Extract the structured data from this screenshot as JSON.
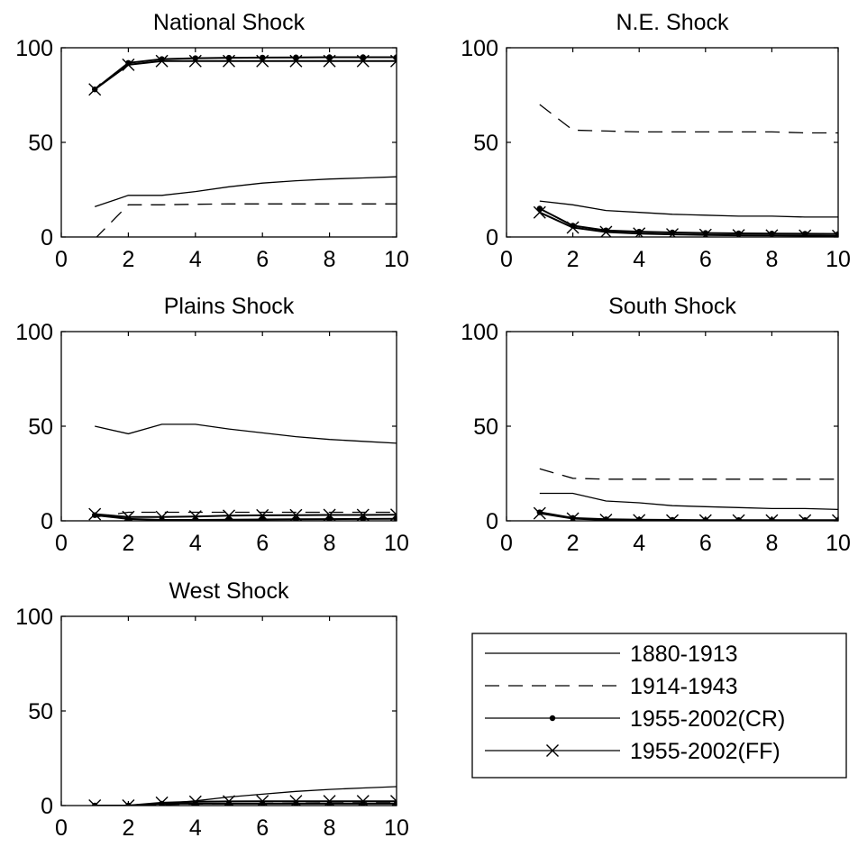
{
  "chart_data": [
    {
      "type": "line",
      "title": "National Shock",
      "xlim": [
        0,
        10
      ],
      "ylim": [
        0,
        100
      ],
      "xticks": [
        0,
        2,
        4,
        6,
        8,
        10
      ],
      "yticks": [
        0,
        50,
        100
      ],
      "x": [
        1,
        2,
        3,
        4,
        5,
        6,
        7,
        8,
        9,
        10
      ],
      "series": [
        {
          "name": "1880-1913",
          "values": [
            16,
            22,
            22,
            24,
            26.5,
            28.5,
            29.7,
            30.6,
            31.2,
            31.8
          ]
        },
        {
          "name": "1914-1943",
          "values": [
            -1,
            17,
            17,
            17.3,
            17.5,
            17.5,
            17.5,
            17.5,
            17.5,
            17.5
          ]
        },
        {
          "name": "1955-2002(CR)",
          "values": [
            78,
            92,
            94,
            94.5,
            94.7,
            94.8,
            94.9,
            95,
            95,
            95
          ]
        },
        {
          "name": "1955-2002(FF)",
          "values": [
            78,
            91,
            93,
            93,
            93,
            93,
            93,
            93,
            93,
            93
          ]
        }
      ]
    },
    {
      "type": "line",
      "title": "N.E. Shock",
      "xlim": [
        0,
        10
      ],
      "ylim": [
        0,
        100
      ],
      "xticks": [
        0,
        2,
        4,
        6,
        8,
        10
      ],
      "yticks": [
        0,
        50,
        100
      ],
      "x": [
        1,
        2,
        3,
        4,
        5,
        6,
        7,
        8,
        9,
        10
      ],
      "series": [
        {
          "name": "1880-1913",
          "values": [
            19,
            17,
            14,
            13,
            12,
            11.5,
            11,
            11,
            10.5,
            10.5
          ]
        },
        {
          "name": "1914-1943",
          "values": [
            70,
            56.5,
            56,
            55.5,
            55.5,
            55.5,
            55.5,
            55.5,
            55,
            55
          ]
        },
        {
          "name": "1955-2002(CR)",
          "values": [
            15,
            6,
            3.5,
            2.8,
            2.4,
            2.1,
            1.9,
            1.8,
            1.7,
            1.6
          ]
        },
        {
          "name": "1955-2002(FF)",
          "values": [
            13,
            5,
            2.6,
            1.8,
            1.4,
            1.1,
            0.9,
            0.8,
            0.7,
            0.6
          ]
        }
      ]
    },
    {
      "type": "line",
      "title": "Plains Shock",
      "xlim": [
        0,
        10
      ],
      "ylim": [
        0,
        100
      ],
      "xticks": [
        0,
        2,
        4,
        6,
        8,
        10
      ],
      "yticks": [
        0,
        50,
        100
      ],
      "x": [
        1,
        2,
        3,
        4,
        5,
        6,
        7,
        8,
        9,
        10
      ],
      "series": [
        {
          "name": "1880-1913",
          "values": [
            50,
            46,
            51,
            51,
            48.5,
            46.5,
            44.5,
            43,
            42,
            41
          ]
        },
        {
          "name": "1914-1943",
          "values": [
            2,
            4.5,
            4.5,
            4.5,
            4.5,
            4.5,
            4.5,
            4.5,
            4.5,
            4.5
          ]
        },
        {
          "name": "1955-2002(CR)",
          "values": [
            3,
            1,
            0.5,
            0.5,
            0.6,
            0.7,
            0.8,
            0.9,
            1,
            1.1
          ]
        },
        {
          "name": "1955-2002(FF)",
          "values": [
            3.5,
            2,
            2,
            2.3,
            2.7,
            2.9,
            3,
            3.1,
            3.1,
            3.2
          ]
        }
      ]
    },
    {
      "type": "line",
      "title": "South Shock",
      "xlim": [
        0,
        10
      ],
      "ylim": [
        0,
        100
      ],
      "xticks": [
        0,
        2,
        4,
        6,
        8,
        10
      ],
      "yticks": [
        0,
        50,
        100
      ],
      "x": [
        1,
        2,
        3,
        4,
        5,
        6,
        7,
        8,
        9,
        10
      ],
      "series": [
        {
          "name": "1880-1913",
          "values": [
            14.5,
            14.5,
            10.5,
            9.5,
            8,
            7.5,
            7,
            6.5,
            6.5,
            6
          ]
        },
        {
          "name": "1914-1943",
          "values": [
            27.5,
            22.5,
            22,
            22,
            22,
            22,
            22,
            22,
            22,
            22
          ]
        },
        {
          "name": "1955-2002(CR)",
          "values": [
            4.5,
            1.5,
            0.8,
            0.6,
            0.5,
            0.4,
            0.4,
            0.4,
            0.4,
            0.4
          ]
        },
        {
          "name": "1955-2002(FF)",
          "values": [
            4,
            1.2,
            0.5,
            0.3,
            0.2,
            0.2,
            0.2,
            0.2,
            0.2,
            0.2
          ]
        }
      ]
    },
    {
      "type": "line",
      "title": "West Shock",
      "xlim": [
        0,
        10
      ],
      "ylim": [
        0,
        100
      ],
      "xticks": [
        0,
        2,
        4,
        6,
        8,
        10
      ],
      "yticks": [
        0,
        50,
        100
      ],
      "x": [
        1,
        2,
        3,
        4,
        5,
        6,
        7,
        8,
        9,
        10
      ],
      "series": [
        {
          "name": "1880-1913",
          "values": [
            0,
            0,
            1,
            2.5,
            4.5,
            6,
            7.5,
            8.5,
            9.3,
            10
          ]
        },
        {
          "name": "1914-1943",
          "values": [
            0,
            0,
            0.5,
            0.8,
            1,
            1.2,
            1.3,
            1.4,
            1.5,
            1.5
          ]
        },
        {
          "name": "1955-2002(CR)",
          "values": [
            0,
            0,
            1,
            1,
            1,
            1,
            1,
            1,
            1,
            1
          ]
        },
        {
          "name": "1955-2002(FF)",
          "values": [
            0,
            0,
            1.5,
            2,
            2.2,
            2.3,
            2.3,
            2.3,
            2.3,
            2.3
          ]
        }
      ]
    }
  ],
  "legend": {
    "placement": "bottom-right",
    "items": [
      {
        "label": "1880-1913",
        "style": "solid",
        "marker": "none"
      },
      {
        "label": "1914-1943",
        "style": "dashed",
        "marker": "none"
      },
      {
        "label": "1955-2002(CR)",
        "style": "solid",
        "marker": "dot"
      },
      {
        "label": "1955-2002(FF)",
        "style": "solid",
        "marker": "x"
      }
    ]
  }
}
